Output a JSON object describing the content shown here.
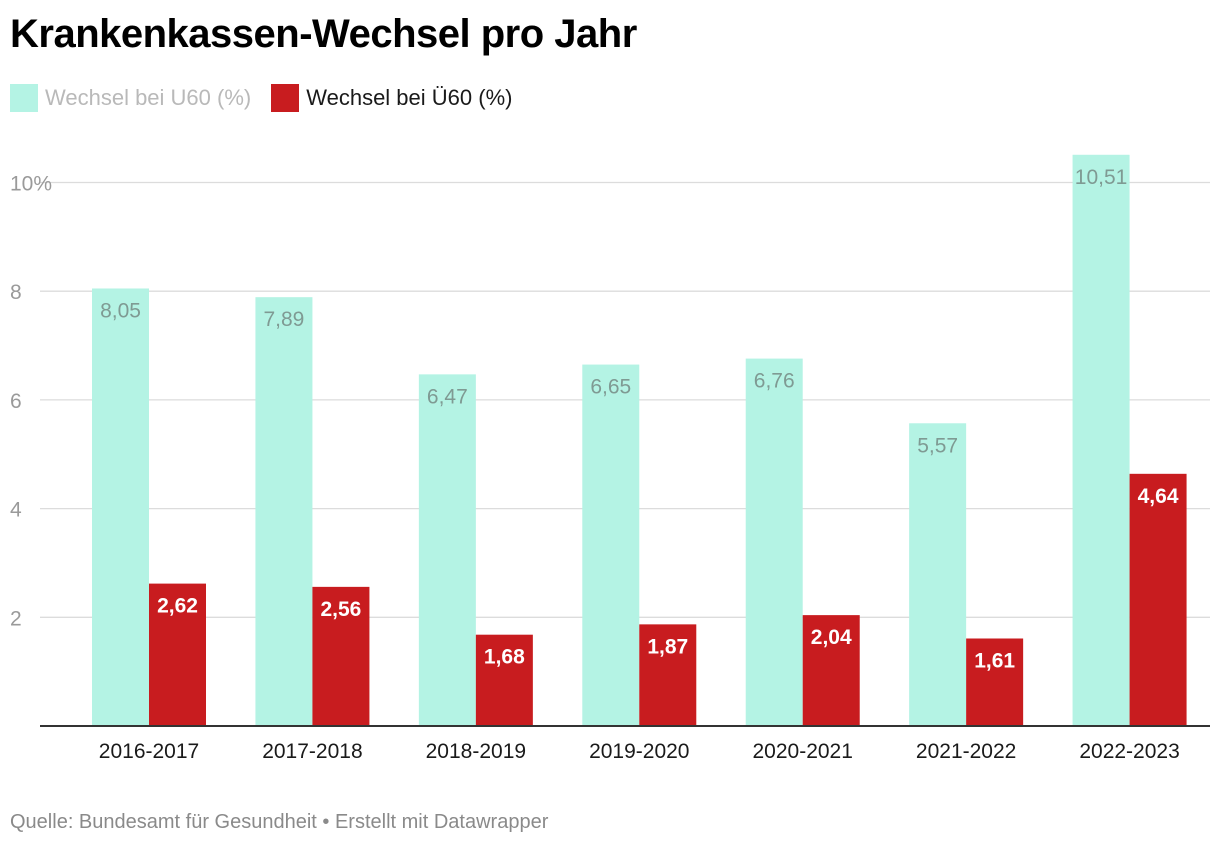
{
  "title": "Krankenkassen-Wechsel pro Jahr",
  "footer": "Quelle: Bundesamt für Gesundheit • Erstellt mit Datawrapper",
  "legend": [
    {
      "label": "Wechsel bei U60 (%)",
      "color": "#b4f3e4"
    },
    {
      "label": "Wechsel bei Ü60 (%)",
      "color": "#c81c1f"
    }
  ],
  "chart_data": {
    "type": "bar",
    "title": "Krankenkassen-Wechsel pro Jahr",
    "categories": [
      "2016-2017",
      "2017-2018",
      "2018-2019",
      "2019-2020",
      "2020-2021",
      "2021-2022",
      "2022-2023"
    ],
    "series": [
      {
        "name": "Wechsel bei U60 (%)",
        "values": [
          8.05,
          7.89,
          6.47,
          6.65,
          6.76,
          5.57,
          10.51
        ],
        "labels": [
          "8,05",
          "7,89",
          "6,47",
          "6,65",
          "6,76",
          "5,57",
          "10,51"
        ],
        "color": "#b4f3e4"
      },
      {
        "name": "Wechsel bei Ü60 (%)",
        "values": [
          2.62,
          2.56,
          1.68,
          1.87,
          2.04,
          1.61,
          4.64
        ],
        "labels": [
          "2,62",
          "2,56",
          "1,68",
          "1,87",
          "2,04",
          "1,61",
          "4,64"
        ],
        "color": "#c81c1f"
      }
    ],
    "yticks": [
      2,
      4,
      6,
      8,
      10
    ],
    "ytick_labels": [
      "2",
      "4",
      "6",
      "8",
      "10%"
    ],
    "ylim": [
      0,
      10.6
    ],
    "xlabel": "",
    "ylabel": "",
    "grid": true,
    "legend_position": "top-left"
  }
}
